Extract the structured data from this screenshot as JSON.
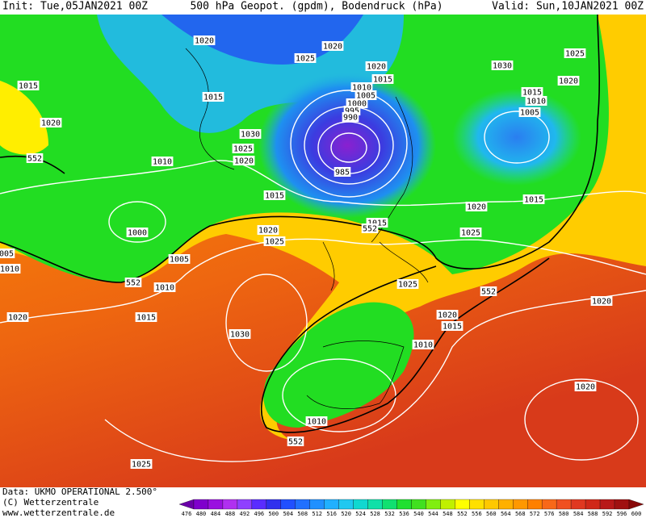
{
  "header": {
    "init": "Init: Tue,05JAN2021 00Z",
    "title": "500 hPa Geopot. (gpdm), Bodendruck (hPa)",
    "valid": "Valid: Sun,10JAN2021 00Z"
  },
  "footer": {
    "data": "Data: UKMO OPERATIONAL 2.500°",
    "copyright": "(C) Wetterzentrale",
    "url": "www.wetterzentrale.de"
  },
  "isobar_labels": [
    "1020",
    "1025",
    "1020",
    "1020",
    "1015",
    "1010",
    "1005",
    "1000",
    "995",
    "990",
    "1030",
    "1025",
    "1020",
    "1015",
    "1010",
    "1005",
    "1015",
    "1015",
    "1020",
    "552",
    "1030",
    "1025",
    "1020",
    "1010",
    "985",
    "1015",
    "1020",
    "1015",
    "1000",
    "1015",
    "552",
    "1025",
    "1020",
    "1025",
    "005",
    "1010",
    "1005",
    "552",
    "1010",
    "1025",
    "552",
    "1020",
    "1015",
    "1030",
    "1020",
    "1015",
    "1020",
    "1010",
    "1020",
    "1010",
    "552",
    "1025"
  ],
  "colorbar_labels": [
    476,
    480,
    484,
    488,
    492,
    496,
    500,
    504,
    508,
    512,
    516,
    520,
    524,
    528,
    532,
    536,
    540,
    544,
    548,
    552,
    556,
    560,
    564,
    568,
    572,
    576,
    580,
    584,
    588,
    592,
    596,
    600
  ]
}
